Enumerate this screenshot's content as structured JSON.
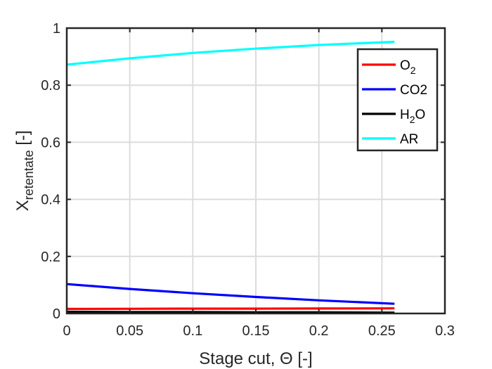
{
  "chart_data": {
    "type": "line",
    "xlabel": {
      "main": "Stage cut, Θ [-]"
    },
    "ylabel": {
      "main": "X",
      "sub": "retentate",
      "suffix": " [-]"
    },
    "xlim": [
      0,
      0.3
    ],
    "ylim": [
      0,
      1
    ],
    "xticks": [
      "0",
      "0.05",
      "0.1",
      "0.15",
      "0.2",
      "0.25",
      "0.3"
    ],
    "yticks": [
      "0",
      "0.2",
      "0.4",
      "0.6",
      "0.8",
      "1"
    ],
    "grid": true,
    "legend_position": "top-right",
    "series": [
      {
        "name": "O2",
        "legend": {
          "main": "O",
          "sub": "2",
          "tail": ""
        },
        "color": "#ff0000",
        "x": [
          0,
          0.05,
          0.1,
          0.15,
          0.2,
          0.26
        ],
        "y": [
          0.016,
          0.0165,
          0.017,
          0.017,
          0.0175,
          0.018
        ]
      },
      {
        "name": "CO2",
        "legend": {
          "main": "CO2",
          "sub": "",
          "tail": ""
        },
        "color": "#0000ff",
        "x": [
          0,
          0.05,
          0.1,
          0.15,
          0.2,
          0.26
        ],
        "y": [
          0.103,
          0.086,
          0.071,
          0.058,
          0.046,
          0.034
        ]
      },
      {
        "name": "H2O",
        "legend": {
          "main": "H",
          "sub": "2",
          "tail": "O"
        },
        "color": "#000000",
        "x": [
          0,
          0.05,
          0.1,
          0.15,
          0.2,
          0.26
        ],
        "y": [
          0.006,
          0.005,
          0.005,
          0.004,
          0.004,
          0.003
        ]
      },
      {
        "name": "AR",
        "legend": {
          "main": "AR",
          "sub": "",
          "tail": ""
        },
        "color": "#00ffff",
        "x": [
          0,
          0.05,
          0.1,
          0.15,
          0.2,
          0.26
        ],
        "y": [
          0.872,
          0.894,
          0.913,
          0.928,
          0.941,
          0.952
        ]
      }
    ]
  }
}
